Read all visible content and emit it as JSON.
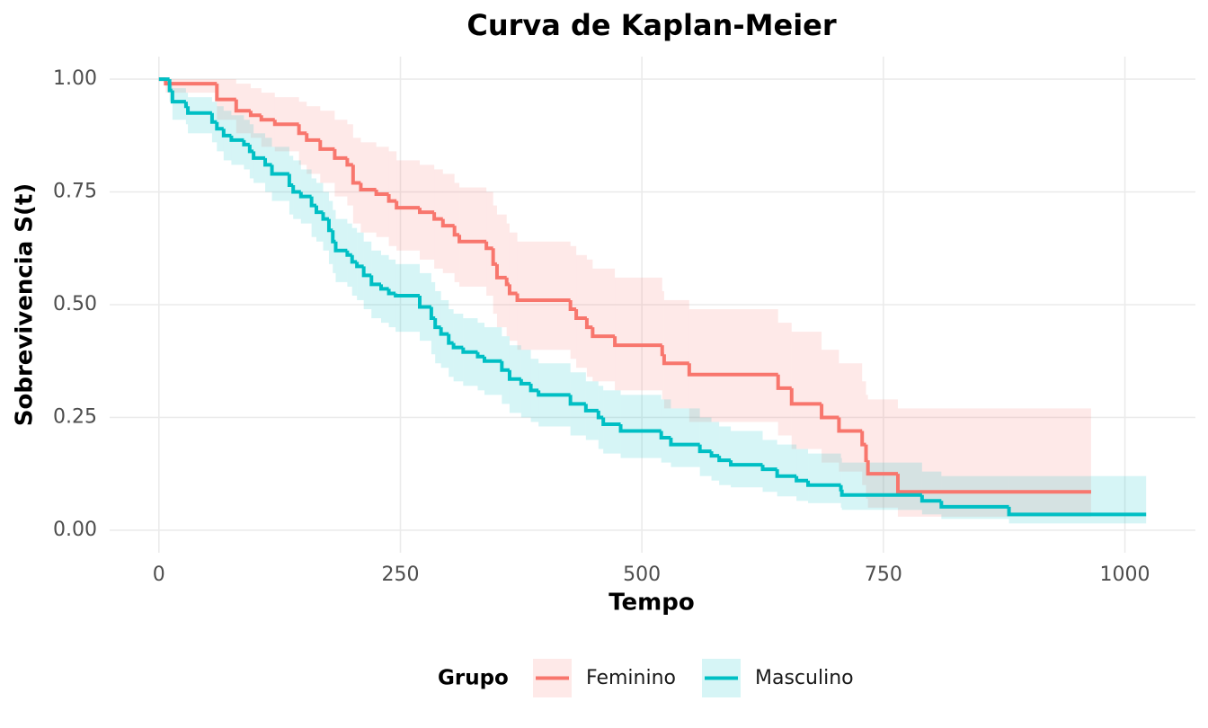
{
  "chart_data": {
    "type": "survival",
    "title": "Curva de Kaplan-Meier",
    "x_label": "Tempo",
    "y_label": "Sobrevivencia S(t)",
    "legend_title": "Grupo",
    "legend_position": "bottom",
    "grid": true,
    "xlim": [
      -51,
      1073
    ],
    "ylim": [
      -0.05,
      1.05
    ],
    "xticks": [
      0,
      250,
      500,
      750,
      1000
    ],
    "yticks": [
      {
        "value": 0,
        "label": "0.00"
      },
      {
        "value": 0.25,
        "label": "0.25"
      },
      {
        "value": 0.5,
        "label": "0.50"
      },
      {
        "value": 0.75,
        "label": "0.75"
      },
      {
        "value": 1,
        "label": "1.00"
      }
    ],
    "series": [
      {
        "name": "Feminino",
        "color": "#F8766D",
        "x": [
          0,
          7,
          60,
          80,
          95,
          106,
          120,
          145,
          153,
          167,
          182,
          195,
          201,
          209,
          225,
          238,
          246,
          270,
          285,
          294,
          306,
          311,
          339,
          346,
          350,
          360,
          363,
          371,
          426,
          432,
          443,
          449,
          472,
          521,
          523,
          549,
          641,
          655,
          686,
          704,
          728,
          732,
          734,
          765,
          965
        ],
        "values": [
          1.0,
          0.99,
          0.955,
          0.93,
          0.92,
          0.91,
          0.9,
          0.88,
          0.865,
          0.845,
          0.825,
          0.81,
          0.77,
          0.755,
          0.745,
          0.73,
          0.715,
          0.705,
          0.69,
          0.675,
          0.655,
          0.64,
          0.625,
          0.59,
          0.56,
          0.545,
          0.525,
          0.51,
          0.49,
          0.47,
          0.45,
          0.43,
          0.41,
          0.39,
          0.37,
          0.345,
          0.315,
          0.28,
          0.25,
          0.22,
          0.19,
          0.155,
          0.125,
          0.085,
          0.085
        ],
        "lower": [
          1.0,
          0.97,
          0.91,
          0.88,
          0.87,
          0.85,
          0.84,
          0.81,
          0.79,
          0.77,
          0.74,
          0.72,
          0.68,
          0.66,
          0.65,
          0.63,
          0.62,
          0.6,
          0.58,
          0.57,
          0.55,
          0.54,
          0.52,
          0.48,
          0.45,
          0.43,
          0.42,
          0.4,
          0.38,
          0.36,
          0.34,
          0.33,
          0.31,
          0.29,
          0.27,
          0.24,
          0.21,
          0.18,
          0.15,
          0.13,
          0.1,
          0.07,
          0.05,
          0.03,
          0.03
        ],
        "upper": [
          1.0,
          1.0,
          1.0,
          0.99,
          0.98,
          0.97,
          0.96,
          0.95,
          0.94,
          0.93,
          0.91,
          0.9,
          0.87,
          0.86,
          0.85,
          0.84,
          0.82,
          0.81,
          0.8,
          0.79,
          0.77,
          0.76,
          0.75,
          0.72,
          0.7,
          0.68,
          0.66,
          0.64,
          0.63,
          0.61,
          0.6,
          0.58,
          0.56,
          0.53,
          0.51,
          0.49,
          0.46,
          0.44,
          0.4,
          0.37,
          0.33,
          0.3,
          0.29,
          0.27,
          0.27
        ]
      },
      {
        "name": "Masculino",
        "color": "#00BFC4",
        "x": [
          0,
          11,
          14,
          28,
          30,
          55,
          60,
          67,
          75,
          88,
          94,
          98,
          110,
          117,
          135,
          139,
          147,
          158,
          163,
          170,
          176,
          180,
          183,
          195,
          200,
          205,
          212,
          220,
          230,
          238,
          245,
          270,
          282,
          286,
          292,
          300,
          305,
          315,
          330,
          337,
          355,
          363,
          375,
          385,
          393,
          426,
          442,
          455,
          460,
          478,
          520,
          530,
          560,
          572,
          580,
          592,
          625,
          640,
          660,
          672,
          706,
          707,
          790,
          810,
          880,
          1022
        ],
        "values": [
          1.0,
          0.975,
          0.95,
          0.94,
          0.925,
          0.905,
          0.89,
          0.875,
          0.865,
          0.855,
          0.84,
          0.825,
          0.81,
          0.79,
          0.765,
          0.75,
          0.74,
          0.72,
          0.705,
          0.69,
          0.665,
          0.64,
          0.62,
          0.61,
          0.595,
          0.585,
          0.565,
          0.545,
          0.535,
          0.525,
          0.52,
          0.495,
          0.47,
          0.45,
          0.435,
          0.415,
          0.405,
          0.395,
          0.385,
          0.375,
          0.355,
          0.335,
          0.325,
          0.31,
          0.3,
          0.28,
          0.265,
          0.25,
          0.235,
          0.22,
          0.205,
          0.19,
          0.175,
          0.165,
          0.155,
          0.145,
          0.135,
          0.12,
          0.11,
          0.1,
          0.09,
          0.078,
          0.065,
          0.052,
          0.035,
          0.035
        ],
        "lower": [
          1.0,
          0.95,
          0.91,
          0.9,
          0.88,
          0.86,
          0.84,
          0.82,
          0.81,
          0.8,
          0.78,
          0.77,
          0.75,
          0.73,
          0.7,
          0.69,
          0.68,
          0.65,
          0.64,
          0.62,
          0.59,
          0.57,
          0.55,
          0.54,
          0.52,
          0.51,
          0.49,
          0.47,
          0.46,
          0.45,
          0.44,
          0.42,
          0.39,
          0.37,
          0.36,
          0.34,
          0.33,
          0.32,
          0.31,
          0.3,
          0.28,
          0.26,
          0.25,
          0.24,
          0.23,
          0.21,
          0.2,
          0.18,
          0.17,
          0.16,
          0.15,
          0.14,
          0.12,
          0.11,
          0.1,
          0.095,
          0.085,
          0.075,
          0.065,
          0.06,
          0.05,
          0.045,
          0.035,
          0.025,
          0.015,
          0.015
        ],
        "upper": [
          1.0,
          0.99,
          0.98,
          0.97,
          0.96,
          0.95,
          0.94,
          0.93,
          0.92,
          0.91,
          0.9,
          0.88,
          0.87,
          0.85,
          0.83,
          0.82,
          0.8,
          0.78,
          0.77,
          0.75,
          0.73,
          0.71,
          0.69,
          0.68,
          0.67,
          0.66,
          0.64,
          0.62,
          0.61,
          0.6,
          0.59,
          0.57,
          0.55,
          0.53,
          0.51,
          0.49,
          0.48,
          0.47,
          0.46,
          0.45,
          0.43,
          0.41,
          0.4,
          0.38,
          0.37,
          0.35,
          0.33,
          0.32,
          0.31,
          0.3,
          0.29,
          0.27,
          0.25,
          0.24,
          0.23,
          0.22,
          0.2,
          0.19,
          0.18,
          0.17,
          0.16,
          0.15,
          0.13,
          0.12,
          0.12,
          0.12
        ]
      }
    ]
  }
}
